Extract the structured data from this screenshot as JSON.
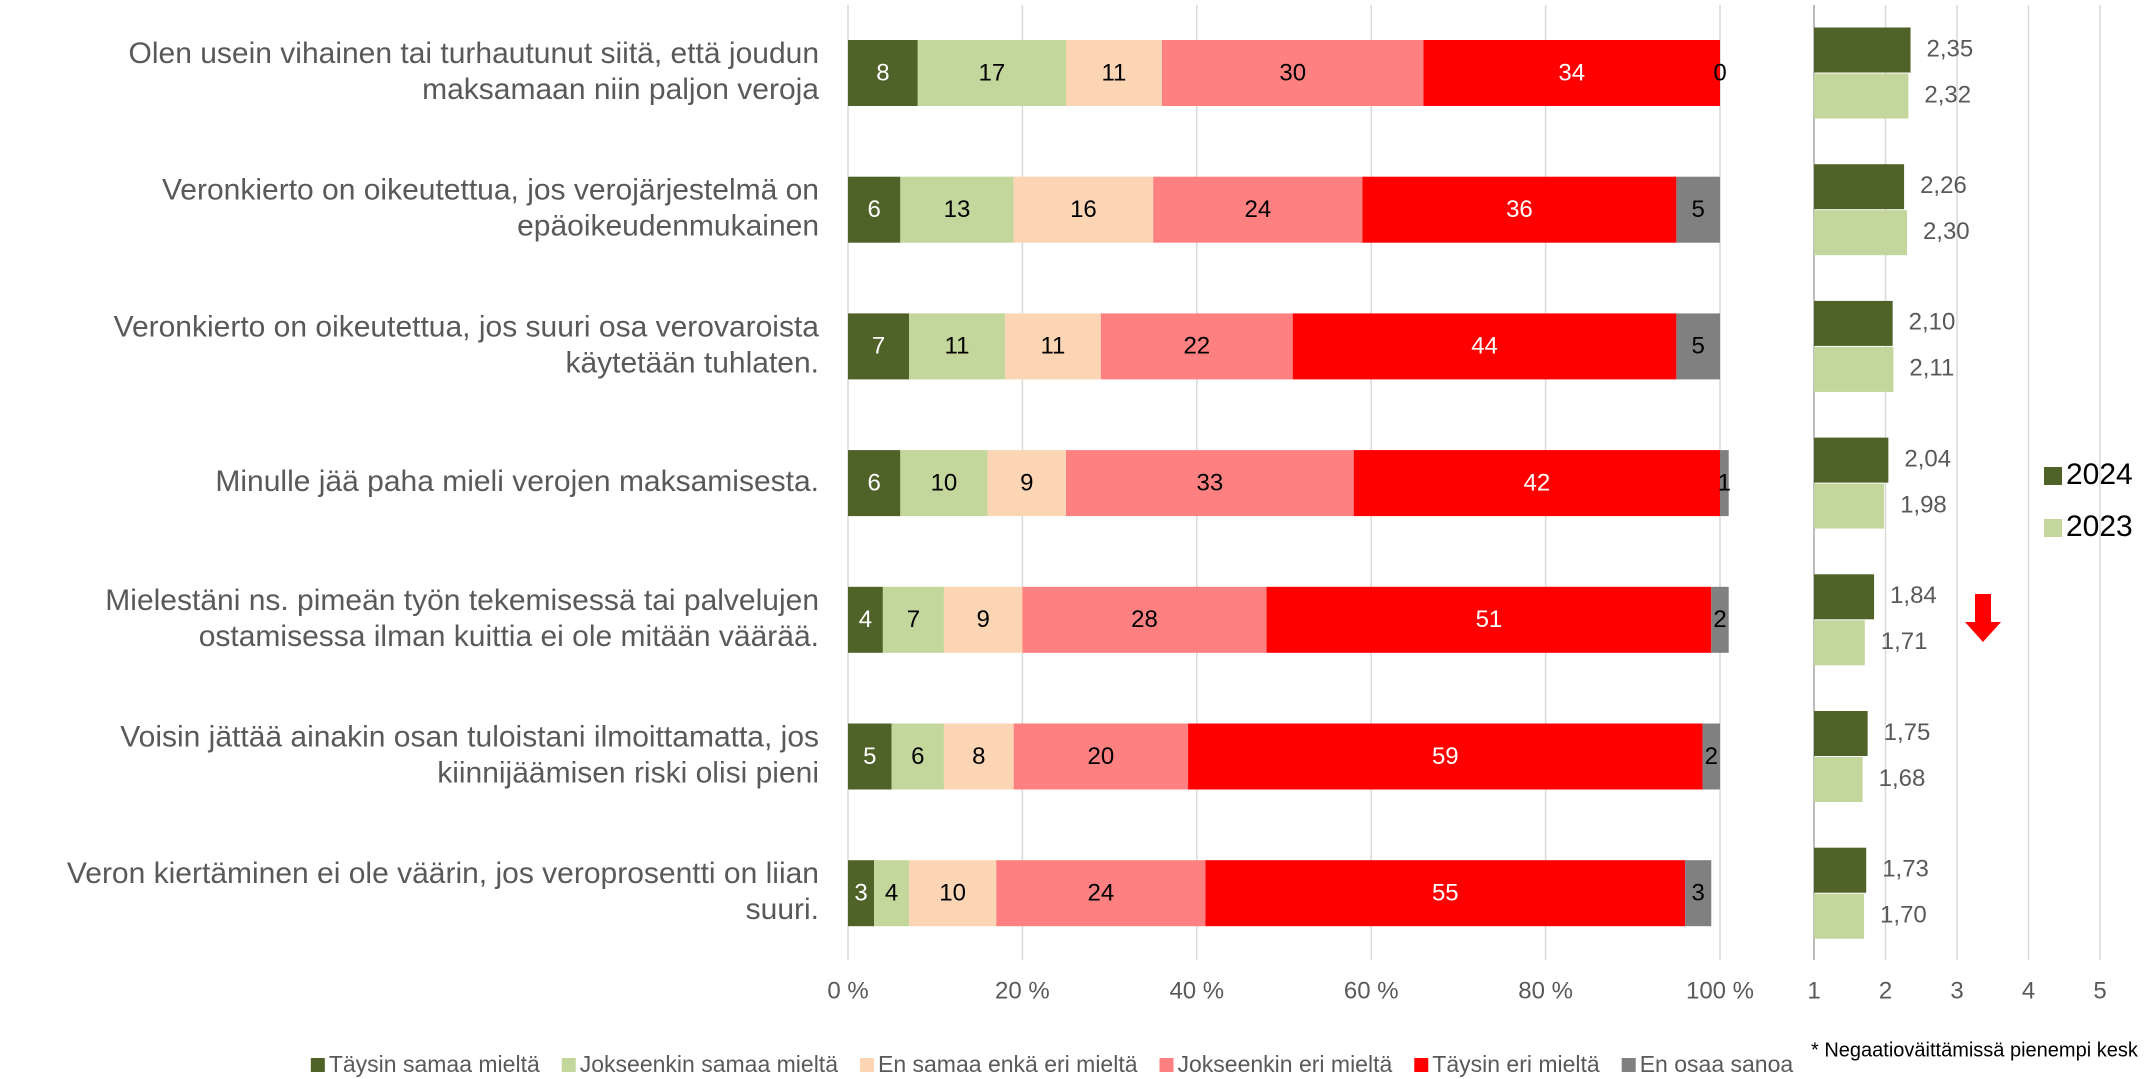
{
  "chart_data": [
    {
      "type": "bar",
      "orientation": "horizontal",
      "stacked": true,
      "categories": [
        "Olen usein vihainen tai turhautunut siitä, että joudun\nmaksamaan niin paljon veroja",
        "Veronkierto on oikeutettua, jos verojärjestelmä on\nepäoikeudenmukainen",
        "Veronkierto on oikeutettua, jos suuri osa verovaroista\nkäytetään tuhlaten.",
        "Minulle jää paha mieli verojen maksamisesta.",
        "Mielestäni ns. pimeän työn tekemisessä tai palvelujen\nostamisessa ilman kuittia ei ole mitään väärää.",
        "Voisin jättää ainakin osan tuloistani ilmoittamatta, jos\nkiinnijäämisen riski olisi pieni",
        "Veron kiertäminen ei ole väärin, jos veroprosentti on liian\nsuuri."
      ],
      "series": [
        {
          "name": "Täysin samaa mieltä",
          "color": "#4f6228",
          "values": [
            8,
            6,
            7,
            6,
            4,
            5,
            3
          ]
        },
        {
          "name": "Jokseenkin samaa mieltä",
          "color": "#c3d69b",
          "values": [
            17,
            13,
            11,
            10,
            7,
            6,
            4
          ]
        },
        {
          "name": "En samaa enkä eri mieltä",
          "color": "#fcd5b5",
          "values": [
            11,
            16,
            11,
            9,
            9,
            8,
            10
          ]
        },
        {
          "name": "Jokseenkin eri mieltä",
          "color": "#ff8080",
          "values": [
            30,
            24,
            22,
            33,
            28,
            20,
            24
          ]
        },
        {
          "name": "Täysin eri mieltä",
          "color": "#ff0000",
          "values": [
            34,
            36,
            44,
            42,
            51,
            59,
            55
          ]
        },
        {
          "name": "En osaa sanoa",
          "color": "#808080",
          "values": [
            0,
            5,
            5,
            1,
            2,
            2,
            3
          ]
        }
      ],
      "xlim": [
        0,
        100
      ],
      "xticks": [
        {
          "value": 0,
          "label": "0 %"
        },
        {
          "value": 20,
          "label": "20 %"
        },
        {
          "value": 40,
          "label": "40 %"
        },
        {
          "value": 60,
          "label": "60 %"
        },
        {
          "value": 80,
          "label": "80 %"
        },
        {
          "value": 100,
          "label": "100 %"
        }
      ],
      "grid": true,
      "legend": "bottom"
    },
    {
      "type": "bar",
      "orientation": "horizontal",
      "series": [
        {
          "name": "2024",
          "color": "#4f6228",
          "values": [
            2.35,
            2.26,
            2.1,
            2.04,
            1.84,
            1.75,
            1.73
          ],
          "value_labels": [
            "2,35",
            "2,26",
            "2,10",
            "2,04",
            "1,84",
            "1,75",
            "1,73"
          ]
        },
        {
          "name": "2023",
          "color": "#c3d69b",
          "values": [
            2.32,
            2.3,
            2.11,
            1.98,
            1.71,
            1.68,
            1.7
          ],
          "value_labels": [
            "2,32",
            "2,30",
            "2,11",
            "1,98",
            "1,71",
            "1,68",
            "1,70"
          ]
        }
      ],
      "xlim": [
        1,
        5
      ],
      "xticks": [
        1,
        2,
        3,
        4,
        5
      ],
      "grid": true,
      "legend": "right",
      "annotation": "* Negaatioväittämissä pienempi kesk"
    }
  ]
}
